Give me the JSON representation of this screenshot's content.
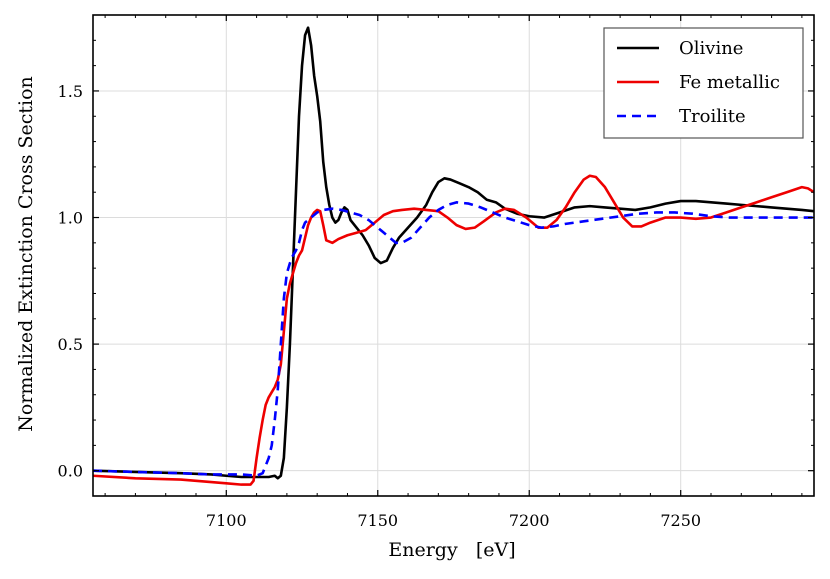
{
  "chart_data": {
    "type": "line",
    "title": "",
    "xlabel": "Energy   [eV]",
    "ylabel": "Normalized Extinction Cross Section",
    "xlim": [
      7056,
      7294
    ],
    "ylim": [
      -0.1,
      1.8
    ],
    "x_ticks": [
      7100,
      7150,
      7200,
      7250
    ],
    "x_tick_labels": [
      "7100",
      "7150",
      "7200",
      "7250"
    ],
    "y_ticks": [
      0.0,
      0.5,
      1.0,
      1.5
    ],
    "y_tick_labels": [
      "0.0",
      "0.5",
      "1.0",
      "1.5"
    ],
    "grid": true,
    "legend_position": "top-right",
    "series": [
      {
        "name": "Olivine",
        "color": "#000000",
        "dash": "solid",
        "points": [
          [
            7056,
            0.0
          ],
          [
            7070,
            -0.005
          ],
          [
            7085,
            -0.01
          ],
          [
            7095,
            -0.015
          ],
          [
            7100,
            -0.02
          ],
          [
            7105,
            -0.025
          ],
          [
            7110,
            -0.025
          ],
          [
            7114,
            -0.025
          ],
          [
            7116,
            -0.02
          ],
          [
            7117,
            -0.03
          ],
          [
            7118,
            -0.02
          ],
          [
            7119,
            0.05
          ],
          [
            7120,
            0.25
          ],
          [
            7121,
            0.5
          ],
          [
            7122,
            0.8
          ],
          [
            7123,
            1.1
          ],
          [
            7124,
            1.4
          ],
          [
            7125,
            1.6
          ],
          [
            7126,
            1.72
          ],
          [
            7127,
            1.75
          ],
          [
            7128,
            1.68
          ],
          [
            7129,
            1.56
          ],
          [
            7130,
            1.48
          ],
          [
            7131,
            1.38
          ],
          [
            7132,
            1.22
          ],
          [
            7133,
            1.12
          ],
          [
            7134,
            1.05
          ],
          [
            7135,
            1.0
          ],
          [
            7136,
            0.98
          ],
          [
            7137,
            0.99
          ],
          [
            7138,
            1.02
          ],
          [
            7139,
            1.04
          ],
          [
            7140,
            1.03
          ],
          [
            7141,
            0.99
          ],
          [
            7143,
            0.96
          ],
          [
            7145,
            0.93
          ],
          [
            7147,
            0.89
          ],
          [
            7149,
            0.84
          ],
          [
            7151,
            0.82
          ],
          [
            7153,
            0.83
          ],
          [
            7155,
            0.88
          ],
          [
            7157,
            0.92
          ],
          [
            7160,
            0.96
          ],
          [
            7163,
            1.0
          ],
          [
            7166,
            1.05
          ],
          [
            7168,
            1.1
          ],
          [
            7170,
            1.14
          ],
          [
            7172,
            1.155
          ],
          [
            7174,
            1.15
          ],
          [
            7177,
            1.135
          ],
          [
            7180,
            1.12
          ],
          [
            7183,
            1.1
          ],
          [
            7186,
            1.07
          ],
          [
            7189,
            1.06
          ],
          [
            7192,
            1.035
          ],
          [
            7196,
            1.015
          ],
          [
            7200,
            1.005
          ],
          [
            7205,
            1.0
          ],
          [
            7210,
            1.02
          ],
          [
            7215,
            1.04
          ],
          [
            7220,
            1.045
          ],
          [
            7225,
            1.04
          ],
          [
            7230,
            1.035
          ],
          [
            7235,
            1.03
          ],
          [
            7240,
            1.04
          ],
          [
            7245,
            1.055
          ],
          [
            7250,
            1.065
          ],
          [
            7255,
            1.065
          ],
          [
            7260,
            1.06
          ],
          [
            7265,
            1.055
          ],
          [
            7270,
            1.05
          ],
          [
            7275,
            1.045
          ],
          [
            7280,
            1.04
          ],
          [
            7285,
            1.035
          ],
          [
            7290,
            1.03
          ],
          [
            7294,
            1.025
          ]
        ]
      },
      {
        "name": "Fe metallic",
        "color": "#ee0000",
        "dash": "solid",
        "points": [
          [
            7056,
            -0.02
          ],
          [
            7070,
            -0.03
          ],
          [
            7085,
            -0.035
          ],
          [
            7095,
            -0.045
          ],
          [
            7100,
            -0.05
          ],
          [
            7105,
            -0.055
          ],
          [
            7108,
            -0.055
          ],
          [
            7109,
            -0.04
          ],
          [
            7110,
            0.05
          ],
          [
            7111,
            0.13
          ],
          [
            7112,
            0.2
          ],
          [
            7113,
            0.26
          ],
          [
            7114,
            0.29
          ],
          [
            7115,
            0.31
          ],
          [
            7116,
            0.33
          ],
          [
            7117,
            0.36
          ],
          [
            7118,
            0.42
          ],
          [
            7119,
            0.55
          ],
          [
            7120,
            0.68
          ],
          [
            7121,
            0.74
          ],
          [
            7122,
            0.78
          ],
          [
            7123,
            0.82
          ],
          [
            7124,
            0.85
          ],
          [
            7125,
            0.87
          ],
          [
            7126,
            0.92
          ],
          [
            7127,
            0.97
          ],
          [
            7128,
            1.0
          ],
          [
            7129,
            1.02
          ],
          [
            7130,
            1.03
          ],
          [
            7131,
            1.025
          ],
          [
            7132,
            0.97
          ],
          [
            7133,
            0.91
          ],
          [
            7135,
            0.9
          ],
          [
            7137,
            0.915
          ],
          [
            7140,
            0.93
          ],
          [
            7143,
            0.94
          ],
          [
            7146,
            0.95
          ],
          [
            7148,
            0.97
          ],
          [
            7150,
            0.99
          ],
          [
            7152,
            1.01
          ],
          [
            7155,
            1.025
          ],
          [
            7158,
            1.03
          ],
          [
            7162,
            1.035
          ],
          [
            7166,
            1.03
          ],
          [
            7170,
            1.025
          ],
          [
            7173,
            1.0
          ],
          [
            7176,
            0.97
          ],
          [
            7179,
            0.955
          ],
          [
            7182,
            0.96
          ],
          [
            7185,
            0.985
          ],
          [
            7189,
            1.02
          ],
          [
            7192,
            1.035
          ],
          [
            7195,
            1.03
          ],
          [
            7199,
            1.0
          ],
          [
            7203,
            0.96
          ],
          [
            7206,
            0.96
          ],
          [
            7209,
            0.99
          ],
          [
            7212,
            1.04
          ],
          [
            7215,
            1.1
          ],
          [
            7218,
            1.15
          ],
          [
            7220,
            1.165
          ],
          [
            7222,
            1.16
          ],
          [
            7225,
            1.12
          ],
          [
            7228,
            1.06
          ],
          [
            7231,
            1.0
          ],
          [
            7234,
            0.965
          ],
          [
            7237,
            0.965
          ],
          [
            7240,
            0.98
          ],
          [
            7245,
            1.0
          ],
          [
            7250,
            1.0
          ],
          [
            7255,
            0.995
          ],
          [
            7260,
            1.0
          ],
          [
            7265,
            1.02
          ],
          [
            7270,
            1.04
          ],
          [
            7275,
            1.06
          ],
          [
            7280,
            1.08
          ],
          [
            7285,
            1.1
          ],
          [
            7290,
            1.12
          ],
          [
            7292,
            1.115
          ],
          [
            7294,
            1.1
          ]
        ]
      },
      {
        "name": "Troilite",
        "color": "#0000ff",
        "dash": "dashed",
        "points": [
          [
            7056,
            0.0
          ],
          [
            7070,
            -0.005
          ],
          [
            7085,
            -0.01
          ],
          [
            7095,
            -0.015
          ],
          [
            7100,
            -0.015
          ],
          [
            7105,
            -0.015
          ],
          [
            7110,
            -0.02
          ],
          [
            7112,
            -0.01
          ],
          [
            7113,
            0.02
          ],
          [
            7114,
            0.05
          ],
          [
            7115,
            0.1
          ],
          [
            7116,
            0.2
          ],
          [
            7117,
            0.32
          ],
          [
            7118,
            0.5
          ],
          [
            7119,
            0.68
          ],
          [
            7120,
            0.78
          ],
          [
            7121,
            0.82
          ],
          [
            7122,
            0.85
          ],
          [
            7123,
            0.87
          ],
          [
            7124,
            0.9
          ],
          [
            7125,
            0.95
          ],
          [
            7126,
            0.98
          ],
          [
            7128,
            1.0
          ],
          [
            7130,
            1.02
          ],
          [
            7132,
            1.03
          ],
          [
            7135,
            1.035
          ],
          [
            7138,
            1.03
          ],
          [
            7141,
            1.02
          ],
          [
            7144,
            1.01
          ],
          [
            7147,
            0.99
          ],
          [
            7150,
            0.96
          ],
          [
            7153,
            0.93
          ],
          [
            7156,
            0.9
          ],
          [
            7158,
            0.9
          ],
          [
            7161,
            0.92
          ],
          [
            7164,
            0.96
          ],
          [
            7167,
            1.0
          ],
          [
            7170,
            1.03
          ],
          [
            7173,
            1.05
          ],
          [
            7176,
            1.06
          ],
          [
            7180,
            1.055
          ],
          [
            7184,
            1.04
          ],
          [
            7188,
            1.02
          ],
          [
            7192,
            1.0
          ],
          [
            7196,
            0.985
          ],
          [
            7200,
            0.97
          ],
          [
            7204,
            0.96
          ],
          [
            7208,
            0.965
          ],
          [
            7212,
            0.975
          ],
          [
            7218,
            0.985
          ],
          [
            7224,
            0.995
          ],
          [
            7230,
            1.005
          ],
          [
            7236,
            1.015
          ],
          [
            7242,
            1.02
          ],
          [
            7248,
            1.02
          ],
          [
            7254,
            1.015
          ],
          [
            7260,
            1.005
          ],
          [
            7266,
            1.0
          ],
          [
            7272,
            1.0
          ],
          [
            7278,
            1.0
          ],
          [
            7284,
            1.0
          ],
          [
            7290,
            1.0
          ],
          [
            7294,
            1.0
          ]
        ]
      }
    ]
  }
}
